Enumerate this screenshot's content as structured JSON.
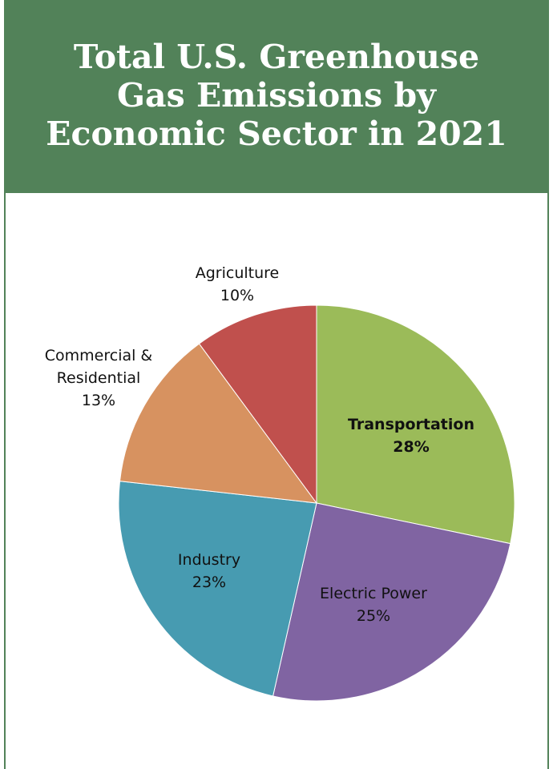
{
  "chart_data": {
    "type": "pie",
    "title": "Total U.S. Greenhouse Gas Emissions by Economic Sector in 2021",
    "start_angle_deg": 0,
    "direction": "clockwise",
    "slices": [
      {
        "label": "Transportation",
        "value": 28,
        "value_label": "28%",
        "color": "#9bbb59",
        "bold": true
      },
      {
        "label": "Electric Power",
        "value": 25,
        "value_label": "25%",
        "color": "#8064a2",
        "bold": false
      },
      {
        "label": "Industry",
        "value": 23,
        "value_label": "23%",
        "color": "#479bb1",
        "bold": false
      },
      {
        "label": "Commercial & Residential",
        "value": 13,
        "value_label": "13%",
        "color": "#d79260",
        "bold": false
      },
      {
        "label": "Agriculture",
        "value": 10,
        "value_label": "10%",
        "color": "#c0504d",
        "bold": false
      }
    ]
  },
  "colors": {
    "header_bg": "#528259",
    "title_text": "#ffffff"
  }
}
